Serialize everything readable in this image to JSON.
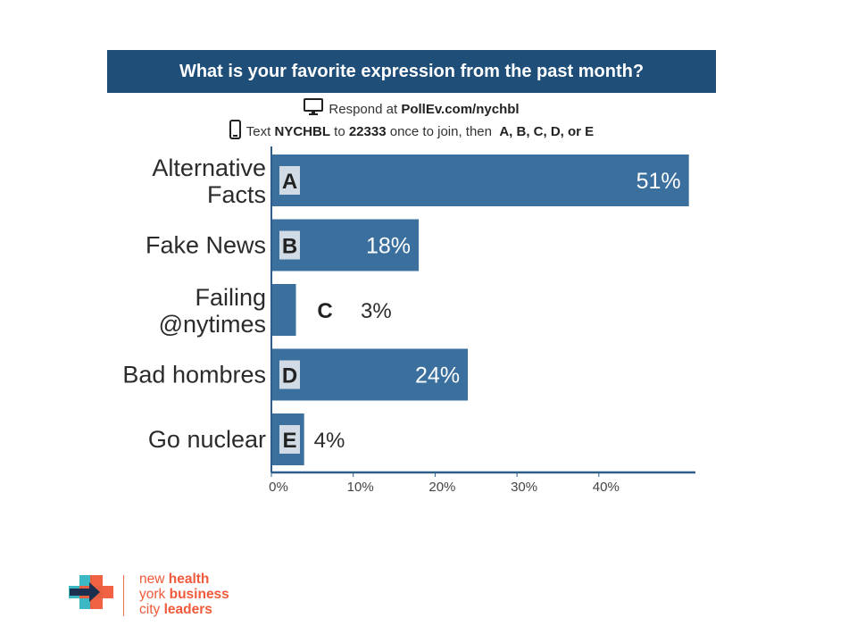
{
  "header": {
    "title": "What is your favorite expression from the past month?"
  },
  "instructions": {
    "respond_prefix": "Respond at",
    "respond_url": "PollEv.com/nychbl",
    "text_prefix": "Text",
    "text_code": "NYCHBL",
    "text_to": "to",
    "text_number": "22333",
    "text_middle": "once to join, then",
    "text_options": "A, B, C, D, or E"
  },
  "icons": {
    "monitor": "monitor-icon",
    "phone": "phone-icon"
  },
  "colors": {
    "title_bg": "#1f4e79",
    "bar": "#3a6f9e",
    "letter_box": "#d0dbe6",
    "axis": "#2e5f8a",
    "logo_orange": "#f05a3a",
    "logo_teal": "#3bb8c3",
    "logo_navy": "#1d2f4f"
  },
  "chart_data": {
    "type": "bar",
    "orientation": "horizontal",
    "categories": [
      "Alternative Facts",
      "Fake News",
      "Failing @nytimes",
      "Bad hombres",
      "Go nuclear"
    ],
    "category_lines": [
      [
        "Alternative",
        "Facts"
      ],
      [
        "Fake News"
      ],
      [
        "Failing",
        "@nytimes"
      ],
      [
        "Bad hombres"
      ],
      [
        "Go nuclear"
      ]
    ],
    "letters": [
      "A",
      "B",
      "C",
      "D",
      "E"
    ],
    "values": [
      51,
      18,
      3,
      24,
      4
    ],
    "value_labels": [
      "51%",
      "18%",
      "3%",
      "24%",
      "4%"
    ],
    "xlim": [
      0,
      52
    ],
    "ticks": [
      0,
      10,
      20,
      30,
      40
    ],
    "tick_labels": [
      "0%",
      "10%",
      "20%",
      "30%",
      "40%"
    ],
    "title": "What is your favorite expression from the past month?",
    "grid": false,
    "legend": "none"
  },
  "logo": {
    "lines": [
      {
        "light": "new",
        "bold": "health"
      },
      {
        "light": "york",
        "bold": "business"
      },
      {
        "light": "city",
        "bold": "leaders"
      }
    ]
  }
}
